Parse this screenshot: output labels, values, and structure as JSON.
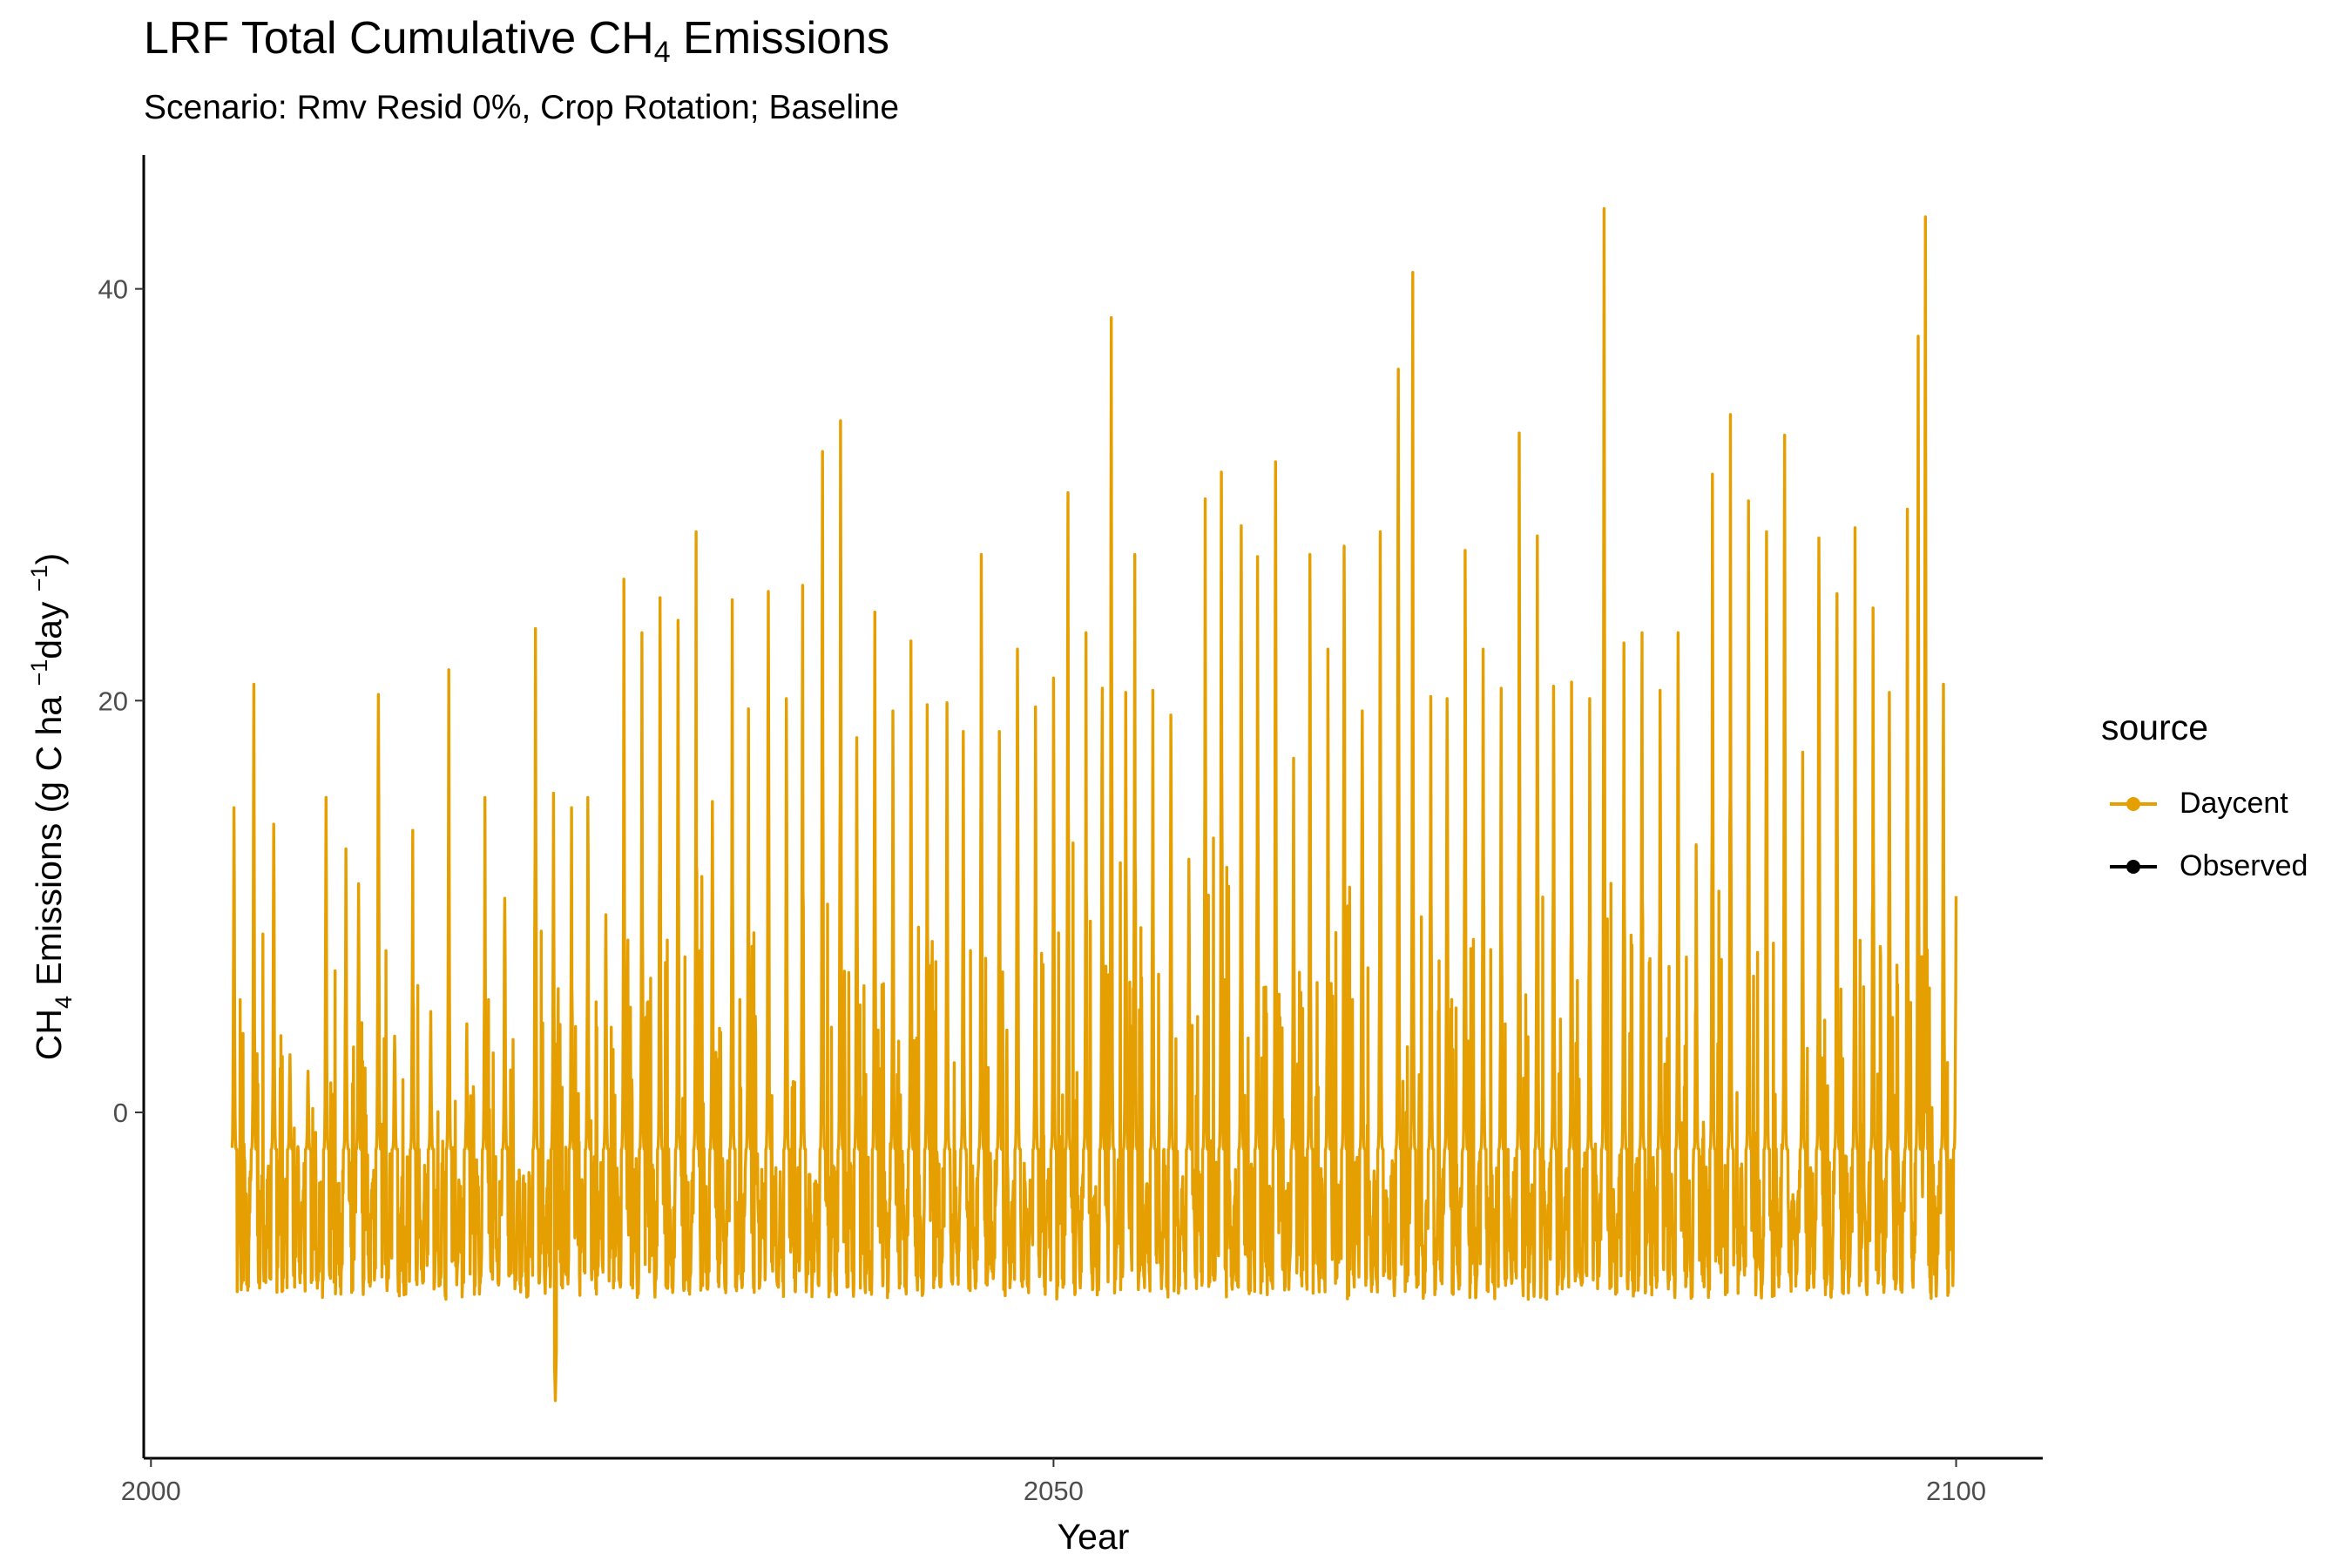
{
  "chart_data": {
    "type": "line",
    "title_main": "LRF Total Cumulative CH",
    "title_sub": "4",
    "title_tail": " Emissions",
    "subtitle": "Scenario: Rmv Resid 0%, Crop Rotation; Baseline",
    "xlabel": "Year",
    "ylabel_parts": [
      "CH",
      "4",
      " Emissions (g C ha ",
      "−1",
      "day ",
      "−1",
      ")"
    ],
    "x_ticks": [
      2000,
      2050,
      2100
    ],
    "x_tick_labels": [
      "2000",
      "2050",
      "2100"
    ],
    "y_ticks": [
      0,
      20,
      40
    ],
    "y_tick_labels": [
      "0",
      "20",
      "40"
    ],
    "xlim": [
      1999.6,
      2104.8
    ],
    "ylim": [
      -16.8,
      46.5
    ],
    "grid": false,
    "legend": {
      "title": "source",
      "position": "right",
      "entries": [
        {
          "label": "Daycent",
          "color": "#E69F00"
        },
        {
          "label": "Observed",
          "color": "#000000"
        }
      ]
    },
    "series": [
      {
        "name": "Daycent",
        "color": "#E69F00",
        "x_start": 2004.5,
        "x_end": 2100.0,
        "baseline_range": [
          -8.5,
          -1.8
        ],
        "annual_peaks": [
          [
            2004.6,
            14.8
          ],
          [
            2005.7,
            20.8
          ],
          [
            2006.8,
            14.0
          ],
          [
            2007.7,
            2.8
          ],
          [
            2008.7,
            2.0
          ],
          [
            2009.7,
            15.3
          ],
          [
            2010.8,
            12.8
          ],
          [
            2011.5,
            11.1
          ],
          [
            2012.6,
            20.3
          ],
          [
            2013.5,
            3.7
          ],
          [
            2014.5,
            13.7
          ],
          [
            2015.5,
            4.9
          ],
          [
            2016.5,
            21.5
          ],
          [
            2017.5,
            4.3
          ],
          [
            2018.5,
            15.3
          ],
          [
            2019.6,
            10.4
          ],
          [
            2021.3,
            23.5
          ],
          [
            2022.3,
            15.5
          ],
          [
            2023.3,
            14.8
          ],
          [
            2024.2,
            15.3
          ],
          [
            2025.2,
            9.6
          ],
          [
            2026.2,
            25.9
          ],
          [
            2027.2,
            23.3
          ],
          [
            2028.2,
            25.0
          ],
          [
            2029.2,
            23.9
          ],
          [
            2030.2,
            28.2
          ],
          [
            2031.1,
            15.1
          ],
          [
            2032.2,
            24.9
          ],
          [
            2033.1,
            19.6
          ],
          [
            2034.2,
            25.3
          ],
          [
            2035.2,
            20.1
          ],
          [
            2036.1,
            25.6
          ],
          [
            2037.2,
            32.1
          ],
          [
            2038.2,
            33.6
          ],
          [
            2039.1,
            18.2
          ],
          [
            2040.1,
            24.3
          ],
          [
            2041.1,
            19.5
          ],
          [
            2042.1,
            22.9
          ],
          [
            2043.0,
            19.8
          ],
          [
            2044.1,
            19.9
          ],
          [
            2045.0,
            18.5
          ],
          [
            2046.0,
            27.1
          ],
          [
            2047.0,
            18.5
          ],
          [
            2048.0,
            22.5
          ],
          [
            2049.0,
            19.7
          ],
          [
            2050.0,
            21.1
          ],
          [
            2050.8,
            30.1
          ],
          [
            2051.8,
            23.3
          ],
          [
            2052.7,
            20.6
          ],
          [
            2053.2,
            38.6
          ],
          [
            2054.0,
            20.4
          ],
          [
            2054.5,
            27.1
          ],
          [
            2055.5,
            20.5
          ],
          [
            2056.5,
            19.3
          ],
          [
            2057.5,
            12.3
          ],
          [
            2058.4,
            29.8
          ],
          [
            2059.3,
            31.1
          ],
          [
            2060.4,
            28.5
          ],
          [
            2061.3,
            27.0
          ],
          [
            2062.3,
            31.6
          ],
          [
            2063.3,
            17.2
          ],
          [
            2064.2,
            27.1
          ],
          [
            2065.2,
            22.5
          ],
          [
            2066.1,
            27.5
          ],
          [
            2067.1,
            19.5
          ],
          [
            2068.1,
            28.2
          ],
          [
            2069.1,
            36.1
          ],
          [
            2069.9,
            40.8
          ],
          [
            2070.9,
            20.2
          ],
          [
            2071.8,
            20.1
          ],
          [
            2072.8,
            27.3
          ],
          [
            2073.8,
            22.5
          ],
          [
            2074.8,
            20.6
          ],
          [
            2075.8,
            33.0
          ],
          [
            2076.8,
            28.0
          ],
          [
            2077.7,
            20.7
          ],
          [
            2078.7,
            20.9
          ],
          [
            2079.7,
            20.1
          ],
          [
            2080.5,
            43.9
          ],
          [
            2081.6,
            22.8
          ],
          [
            2082.6,
            23.3
          ],
          [
            2083.6,
            20.5
          ],
          [
            2084.6,
            23.3
          ],
          [
            2085.6,
            13.0
          ],
          [
            2086.5,
            31.0
          ],
          [
            2087.5,
            33.9
          ],
          [
            2088.5,
            29.7
          ],
          [
            2089.5,
            28.2
          ],
          [
            2090.5,
            32.9
          ],
          [
            2091.5,
            17.5
          ],
          [
            2092.4,
            27.9
          ],
          [
            2093.4,
            25.2
          ],
          [
            2094.4,
            28.4
          ],
          [
            2095.4,
            24.5
          ],
          [
            2096.3,
            20.4
          ],
          [
            2097.3,
            29.3
          ],
          [
            2097.9,
            37.7
          ],
          [
            2098.3,
            43.5
          ],
          [
            2099.3,
            20.8
          ],
          [
            2100.0,
            10.5
          ]
        ],
        "notable_minimum": [
          2022.4,
          -14.0
        ]
      },
      {
        "name": "Observed",
        "color": "#000000",
        "points": []
      }
    ]
  }
}
